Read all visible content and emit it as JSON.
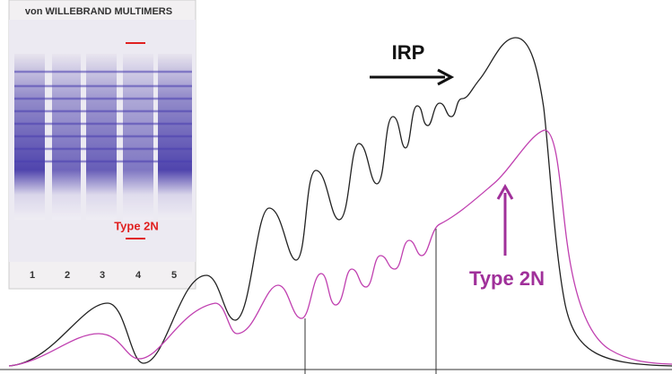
{
  "inset": {
    "title": "von WILLEBRAND MULTIMERS",
    "label": "Type 2N",
    "lanes": [
      "1",
      "2",
      "3",
      "4",
      "5"
    ]
  },
  "annotations": {
    "arrow_label": "IRP",
    "type_label": "Type 2N"
  }
}
